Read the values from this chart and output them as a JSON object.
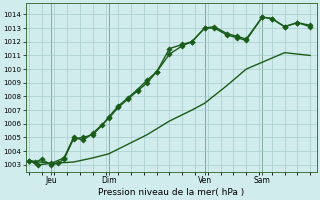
{
  "bg_color": "#d0ecec",
  "grid_color": "#a8cccc",
  "line_color": "#1a5c1a",
  "title": "Pression niveau de la mer( hPa )",
  "ylabel_values": [
    1003,
    1004,
    1005,
    1006,
    1007,
    1008,
    1009,
    1010,
    1011,
    1012,
    1013,
    1014
  ],
  "ylim": [
    1002.5,
    1014.8
  ],
  "xlim": [
    -1,
    90
  ],
  "vline_x": [
    7,
    25,
    55,
    73
  ],
  "xtick_positions": [
    7,
    25,
    55,
    73
  ],
  "xtick_labels": [
    "Jeu",
    "Dim",
    "Ven",
    "Sam"
  ],
  "line1_x": [
    0,
    2,
    4,
    7,
    9,
    11,
    14,
    17,
    20,
    23,
    25,
    28,
    31,
    34,
    37,
    40,
    44,
    48,
    51,
    55,
    58,
    62,
    65,
    68,
    73,
    76,
    80,
    84,
    88
  ],
  "line1_y": [
    1003.3,
    1003.2,
    1003.4,
    1003.0,
    1003.1,
    1003.4,
    1004.9,
    1005.0,
    1005.2,
    1005.9,
    1006.5,
    1007.3,
    1007.9,
    1008.5,
    1009.2,
    1009.8,
    1011.1,
    1011.7,
    1012.0,
    1013.0,
    1013.1,
    1012.6,
    1012.4,
    1012.2,
    1013.8,
    1013.7,
    1013.1,
    1013.4,
    1013.2
  ],
  "line2_x": [
    0,
    3,
    7,
    11,
    14,
    17,
    20,
    25,
    28,
    31,
    34,
    37,
    40,
    44,
    48,
    51,
    55,
    58,
    62,
    65,
    68,
    73,
    76,
    80,
    84,
    88
  ],
  "line2_y": [
    1003.3,
    1003.0,
    1003.1,
    1003.5,
    1005.0,
    1004.8,
    1005.3,
    1006.4,
    1007.2,
    1007.8,
    1008.4,
    1009.0,
    1009.8,
    1011.5,
    1011.8,
    1012.0,
    1013.0,
    1013.0,
    1012.5,
    1012.3,
    1012.1,
    1013.8,
    1013.7,
    1013.1,
    1013.4,
    1013.1
  ],
  "line3_x": [
    0,
    7,
    14,
    20,
    25,
    31,
    37,
    44,
    51,
    55,
    62,
    68,
    73,
    80,
    88
  ],
  "line3_y": [
    1003.3,
    1003.1,
    1003.2,
    1003.5,
    1003.8,
    1004.5,
    1005.2,
    1006.2,
    1007.0,
    1007.5,
    1008.8,
    1010.0,
    1010.5,
    1011.2,
    1011.0
  ],
  "marker_size": 2.8,
  "lw": 1.0,
  "lw3": 1.0
}
